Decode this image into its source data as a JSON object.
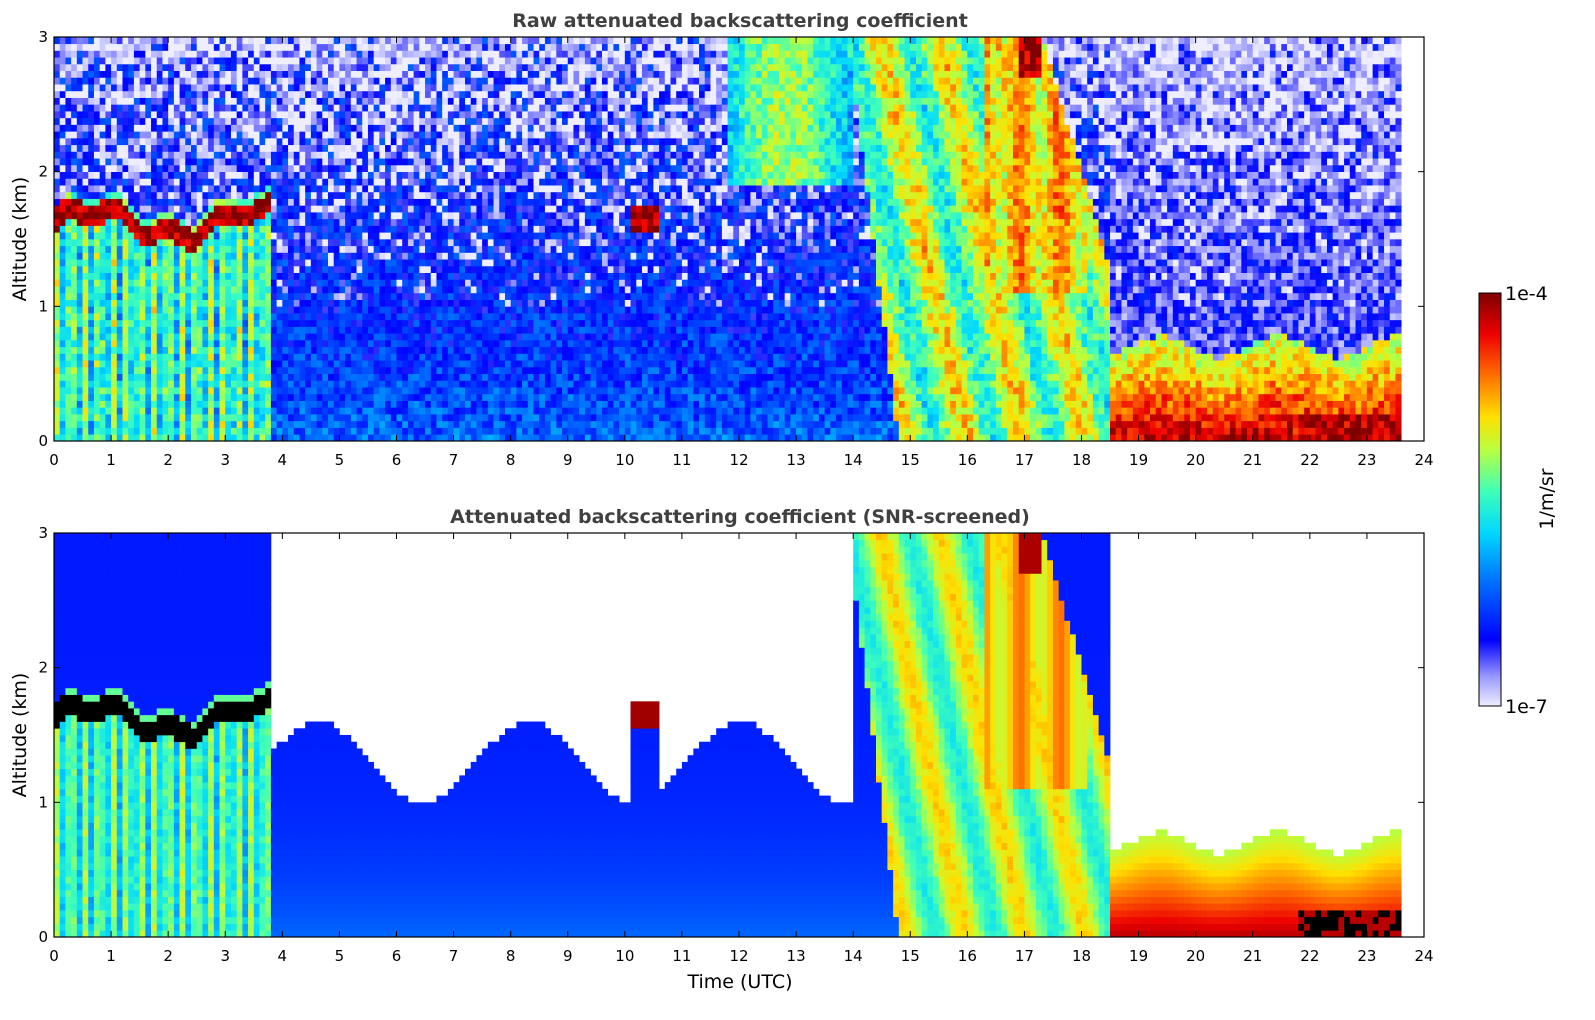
{
  "chart_data": {
    "type": "heatmap",
    "colorbar": {
      "label": "1/m/sr",
      "min_label": "1e-7",
      "max_label": "1e-4",
      "min": 1e-07,
      "max": 0.0001,
      "scale": "log",
      "colormap": "jet"
    },
    "panels": [
      {
        "id": "raw",
        "title": "Raw attenuated backscattering coefficient",
        "ylabel": "Altitude (km)",
        "xlabel": "",
        "xlim": [
          0,
          24
        ],
        "ylim": [
          0,
          3
        ],
        "xticks": [
          "0",
          "1",
          "2",
          "3",
          "4",
          "5",
          "6",
          "7",
          "8",
          "9",
          "10",
          "11",
          "12",
          "13",
          "14",
          "15",
          "16",
          "17",
          "18",
          "19",
          "20",
          "21",
          "22",
          "23",
          "24"
        ],
        "yticks": [
          "0",
          "1",
          "2",
          "3"
        ],
        "data_end_time": 23.6,
        "features": [
          {
            "name": "low cloud layer",
            "time": [
              0,
              3.8
            ],
            "altitude_km": [
              1.55,
              1.8
            ],
            "level": "1e-4"
          },
          {
            "name": "high cloud / precipitation",
            "time": [
              14,
              18.5
            ],
            "altitude_km": [
              0,
              3
            ],
            "level": "1e-5 to 5e-5"
          },
          {
            "name": "boundary layer aerosol",
            "time": [
              18.5,
              23.6
            ],
            "altitude_km": [
              0,
              0.8
            ],
            "level": "3e-5 to 1e-4"
          },
          {
            "name": "small cloud",
            "time": [
              10.2,
              10.6
            ],
            "altitude_km": [
              1.55,
              1.75
            ],
            "level": "1e-4"
          }
        ]
      },
      {
        "id": "screened",
        "title": "Attenuated backscattering coefficient (SNR-screened)",
        "ylabel": "Altitude (km)",
        "xlabel": "Time (UTC)",
        "xlim": [
          0,
          24
        ],
        "ylim": [
          0,
          3
        ],
        "xticks": [
          "0",
          "1",
          "2",
          "3",
          "4",
          "5",
          "6",
          "7",
          "8",
          "9",
          "10",
          "11",
          "12",
          "13",
          "14",
          "15",
          "16",
          "17",
          "18",
          "19",
          "20",
          "21",
          "22",
          "23",
          "24"
        ],
        "yticks": [
          "0",
          "1",
          "2",
          "3"
        ],
        "data_end_time": 23.6,
        "features": [
          {
            "name": "low cloud layer (saturated)",
            "time": [
              0,
              3.8
            ],
            "altitude_km": [
              1.55,
              1.8
            ],
            "level": "saturated"
          },
          {
            "name": "high cloud / precipitation",
            "time": [
              14,
              18.5
            ],
            "altitude_km": [
              0,
              3
            ],
            "level": "1e-5 to 5e-5"
          },
          {
            "name": "boundary layer aerosol",
            "time": [
              18.5,
              23.6
            ],
            "altitude_km": [
              0,
              0.7
            ],
            "level": "3e-5 to 1e-4"
          }
        ]
      }
    ]
  }
}
